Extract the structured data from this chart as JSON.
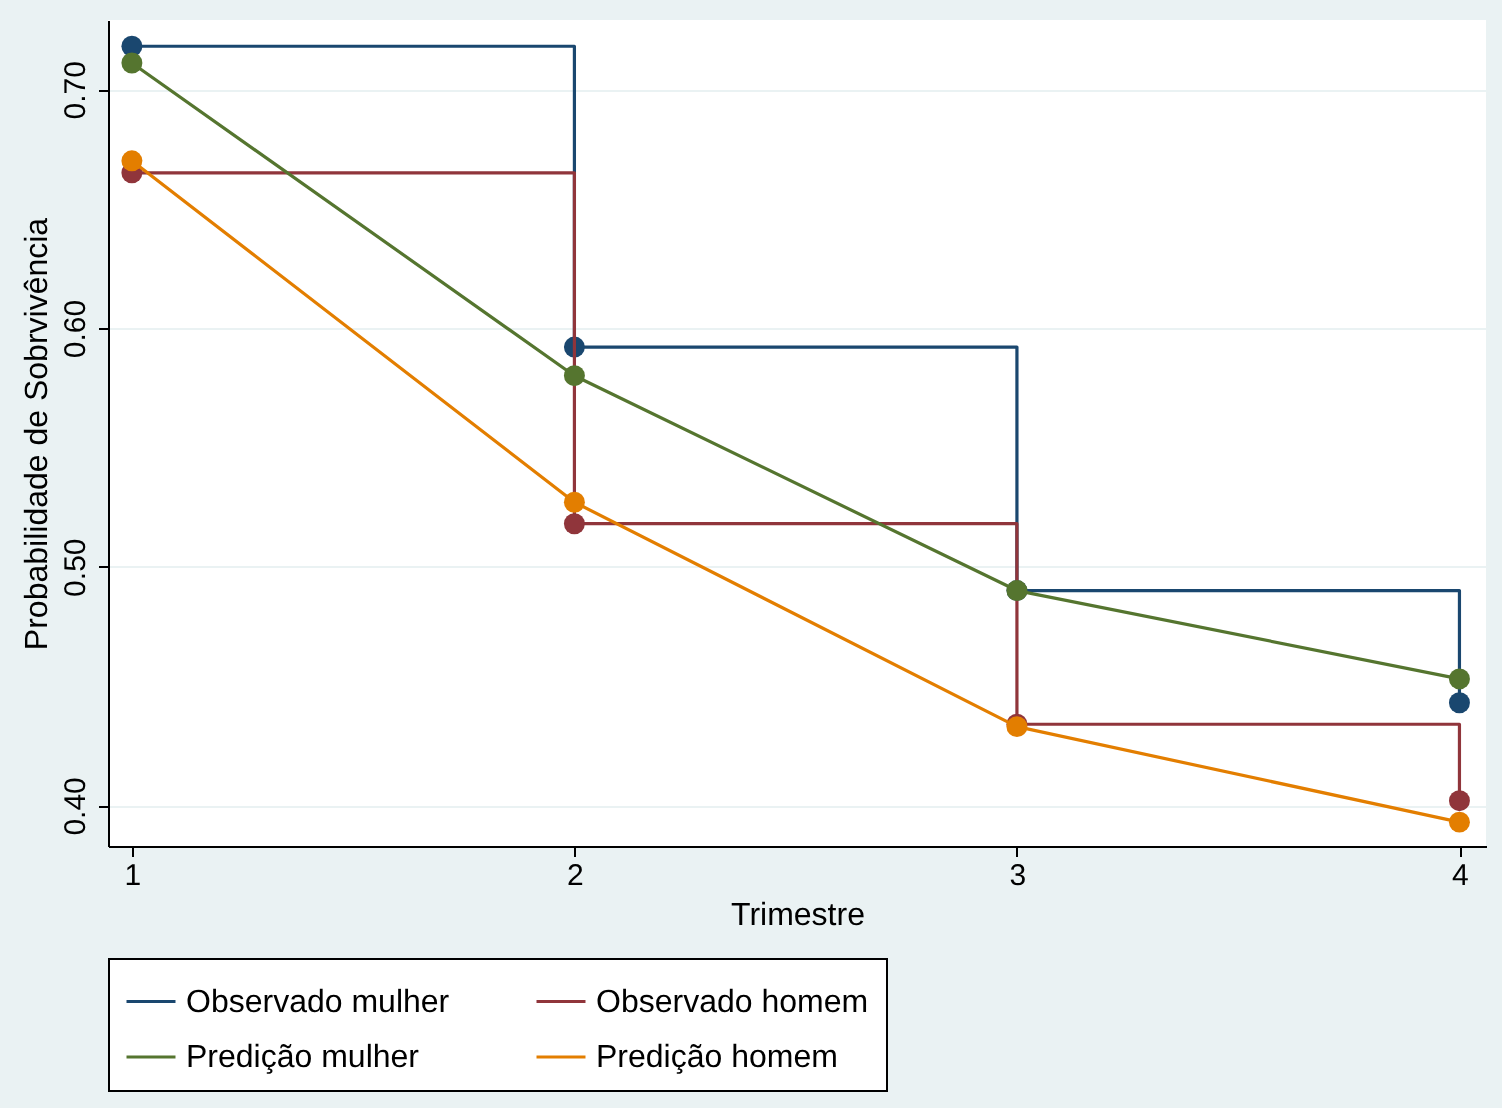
{
  "chart_data": {
    "type": "line",
    "xlabel": "Trimestre",
    "ylabel": "Probabilidade de Sobrvivência",
    "x": [
      1,
      2,
      3,
      4
    ],
    "xlim": [
      0.946,
      4.06
    ],
    "ylim": [
      0.383,
      0.729
    ],
    "xticks": [
      1,
      2,
      3,
      4
    ],
    "yticks": [
      {
        "value": 0.4,
        "label": "0.40"
      },
      {
        "value": 0.5,
        "label": "0.50"
      },
      {
        "value": 0.6,
        "label": "0.60"
      },
      {
        "value": 0.7,
        "label": "0.70"
      }
    ],
    "grid": "y",
    "legend": "bottom",
    "marker": "circle",
    "series": [
      {
        "name": "Observado mulher",
        "type": "step",
        "color": "#1a476f",
        "values": [
          0.718,
          0.592,
          0.49,
          0.443
        ]
      },
      {
        "name": "Observado homem",
        "type": "step",
        "color": "#90353b",
        "values": [
          0.665,
          0.518,
          0.434,
          0.402
        ]
      },
      {
        "name": "Predição mulher",
        "color": "#55752f",
        "values": [
          0.711,
          0.58,
          0.49,
          0.453
        ]
      },
      {
        "name": "Predição homem",
        "color": "#e37e00",
        "values": [
          0.67,
          0.527,
          0.433,
          0.393
        ]
      }
    ]
  }
}
